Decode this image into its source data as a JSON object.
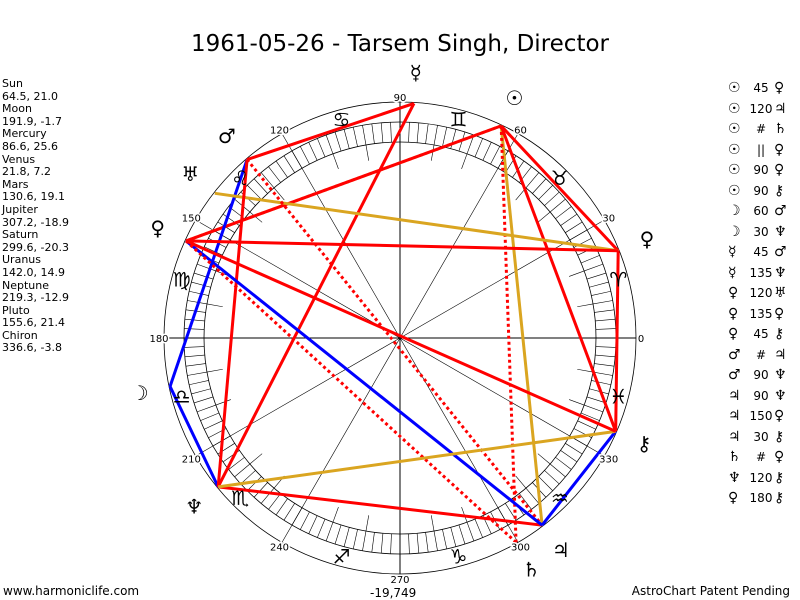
{
  "title": "1961-05-26 - Tarsem Singh, Director",
  "planets": [
    {
      "name": "Sun",
      "glyph": "☉",
      "coords": "64.5, 21.0",
      "lon": 64.5
    },
    {
      "name": "Moon",
      "glyph": "☽",
      "coords": "191.9, -1.7",
      "lon": 191.9
    },
    {
      "name": "Mercury",
      "glyph": "☿",
      "coords": "86.6, 25.6",
      "lon": 86.6
    },
    {
      "name": "Venus",
      "glyph": "♀",
      "coords": "21.8, 7.2",
      "lon": 21.8
    },
    {
      "name": "Mars",
      "glyph": "♂",
      "coords": "130.6, 19.1",
      "lon": 130.6
    },
    {
      "name": "Jupiter",
      "glyph": "♃",
      "coords": "307.2, -18.9",
      "lon": 307.2
    },
    {
      "name": "Saturn",
      "glyph": "♄",
      "coords": "299.6, -20.3",
      "lon": 299.6
    },
    {
      "name": "Uranus",
      "glyph": "♅",
      "coords": "142.0, 14.9",
      "lon": 142.0
    },
    {
      "name": "Neptune",
      "glyph": "♆",
      "coords": "219.3, -12.9",
      "lon": 219.3
    },
    {
      "name": "Pluto",
      "glyph": "♀",
      "coords": "155.6, 21.4",
      "lon": 155.6
    },
    {
      "name": "Chiron",
      "glyph": "⚷",
      "coords": "336.6, -3.8",
      "lon": 336.6
    }
  ],
  "aspects": [
    {
      "p1": "Sun",
      "g1": "☉",
      "type": "45",
      "p2": "Venus",
      "g2": "♀"
    },
    {
      "p1": "Sun",
      "g1": "☉",
      "type": "120",
      "p2": "Jupiter",
      "g2": "♃"
    },
    {
      "p1": "Sun",
      "g1": "☉",
      "type": "#",
      "p2": "Saturn",
      "g2": "♄"
    },
    {
      "p1": "Sun",
      "g1": "☉",
      "type": "||",
      "p2": "Pluto",
      "g2": "♀"
    },
    {
      "p1": "Sun",
      "g1": "☉",
      "type": "90",
      "p2": "Pluto",
      "g2": "♀"
    },
    {
      "p1": "Sun",
      "g1": "☉",
      "type": "90",
      "p2": "Chiron",
      "g2": "⚷"
    },
    {
      "p1": "Moon",
      "g1": "☽",
      "type": "60",
      "p2": "Mars",
      "g2": "♂"
    },
    {
      "p1": "Moon",
      "g1": "☽",
      "type": "30",
      "p2": "Neptune",
      "g2": "♆"
    },
    {
      "p1": "Mercury",
      "g1": "☿",
      "type": "45",
      "p2": "Mars",
      "g2": "♂"
    },
    {
      "p1": "Mercury",
      "g1": "☿",
      "type": "135",
      "p2": "Neptune",
      "g2": "♆"
    },
    {
      "p1": "Venus",
      "g1": "♀",
      "type": "120",
      "p2": "Uranus",
      "g2": "♅"
    },
    {
      "p1": "Venus",
      "g1": "♀",
      "type": "135",
      "p2": "Pluto",
      "g2": "♀"
    },
    {
      "p1": "Venus",
      "g1": "♀",
      "type": "45",
      "p2": "Chiron",
      "g2": "⚷"
    },
    {
      "p1": "Mars",
      "g1": "♂",
      "type": "#",
      "p2": "Jupiter",
      "g2": "♃"
    },
    {
      "p1": "Mars",
      "g1": "♂",
      "type": "90",
      "p2": "Neptune",
      "g2": "♆"
    },
    {
      "p1": "Jupiter",
      "g1": "♃",
      "type": "90",
      "p2": "Neptune",
      "g2": "♆"
    },
    {
      "p1": "Jupiter",
      "g1": "♃",
      "type": "150",
      "p2": "Pluto",
      "g2": "♀"
    },
    {
      "p1": "Jupiter",
      "g1": "♃",
      "type": "30",
      "p2": "Chiron",
      "g2": "⚷"
    },
    {
      "p1": "Saturn",
      "g1": "♄",
      "type": "#",
      "p2": "Pluto",
      "g2": "♀"
    },
    {
      "p1": "Neptune",
      "g1": "♆",
      "type": "120",
      "p2": "Chiron",
      "g2": "⚷"
    },
    {
      "p1": "Pluto",
      "g1": "♀",
      "type": "180",
      "p2": "Chiron",
      "g2": "⚷"
    }
  ],
  "signs": [
    "♈",
    "♉",
    "♊",
    "♋",
    "♌",
    "♍",
    "♎",
    "♏",
    "♐",
    "♑",
    "♒",
    "♓"
  ],
  "degree_labels": [
    "0",
    "30",
    "60",
    "90",
    "120",
    "150",
    "180",
    "210",
    "240",
    "270",
    "300",
    "330"
  ],
  "colors": {
    "hard": "#ff0000",
    "trine": "#daa520",
    "soft": "#0000ff",
    "parallel": "#daa520",
    "contraparallel": "#ff0000"
  },
  "footer": {
    "left": "www.harmoniclife.com",
    "center": "-19,749",
    "right": "AstroChart Patent Pending"
  }
}
